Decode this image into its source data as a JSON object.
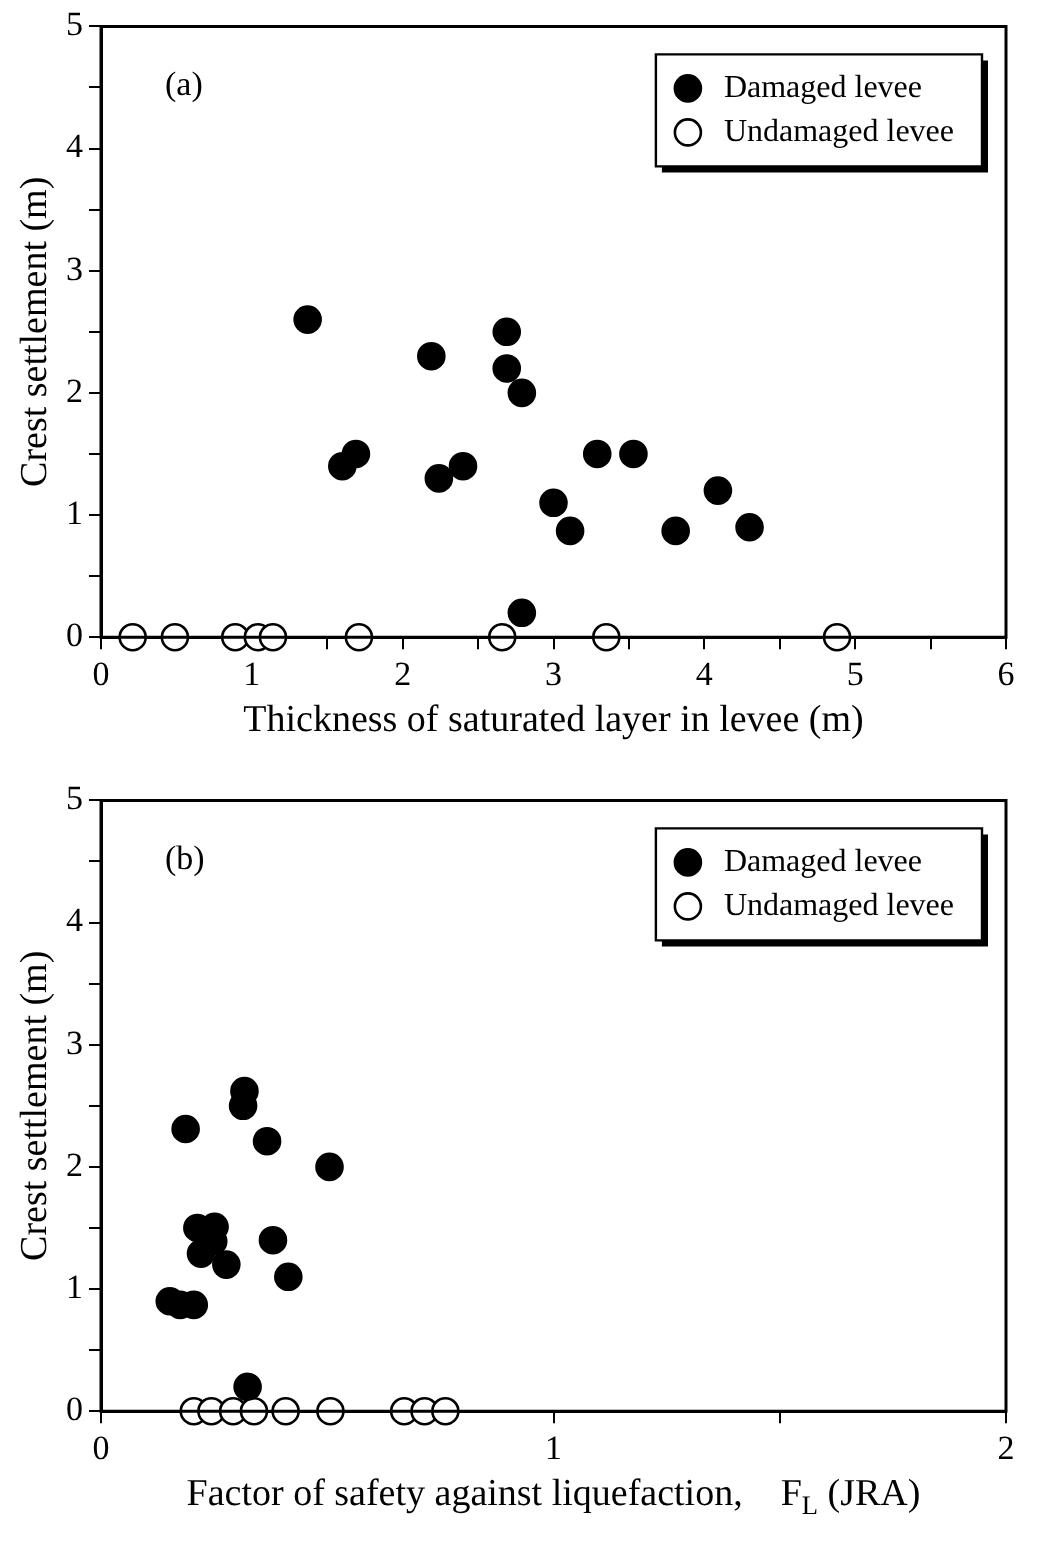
{
  "chart_data": [
    {
      "type": "scatter",
      "xlabel": "Thickness of saturated layer in levee (m)",
      "ylabel": "Crest settlement (m)",
      "annotations": [
        "(a)"
      ],
      "legend": "top right",
      "marker": "circle",
      "xlim": [
        0,
        6
      ],
      "ylim": [
        0,
        5
      ],
      "xticks": [
        0,
        {
          "value": 0.5,
          "label": null
        },
        1,
        {
          "value": 1.5,
          "label": null
        },
        2,
        {
          "value": 2.5,
          "label": null
        },
        3,
        {
          "value": 3.5,
          "label": null
        },
        4,
        {
          "value": 4.5,
          "label": null
        },
        5,
        {
          "value": 5.5,
          "label": null
        },
        6
      ],
      "yticks": [
        0,
        {
          "value": 0.5,
          "label": null
        },
        1,
        {
          "value": 1.5,
          "label": null
        },
        2,
        {
          "value": 2.5,
          "label": null
        },
        3,
        {
          "value": 3.5,
          "label": null
        },
        4,
        {
          "value": 4.5,
          "label": null
        },
        5
      ],
      "series": [
        {
          "name": "Damaged levee",
          "color": "#000000",
          "x": [
            1.37,
            1.6,
            1.69,
            2.19,
            2.24,
            2.4,
            2.69,
            2.69,
            2.79,
            2.79,
            3.0,
            3.11,
            3.29,
            3.53,
            3.81,
            4.09,
            4.3
          ],
          "values": [
            2.6,
            1.4,
            1.5,
            2.3,
            1.3,
            1.4,
            2.5,
            2.2,
            2.0,
            0.2,
            1.1,
            0.87,
            1.5,
            1.5,
            0.87,
            1.2,
            0.9
          ]
        },
        {
          "name": "Undamaged levee",
          "color": "#ffffff",
          "x": [
            0.21,
            0.49,
            0.89,
            1.04,
            1.14,
            1.71,
            2.66,
            3.35,
            4.88
          ],
          "values": [
            0,
            0,
            0,
            0,
            0,
            0,
            0,
            0,
            0
          ]
        }
      ]
    },
    {
      "type": "scatter",
      "xlabel": "Factor of safety against liquefaction,    F$_{L}$ (JRA)",
      "ylabel": "Crest settlement (m)",
      "annotations": [
        "(b)"
      ],
      "legend": "top right",
      "marker": "circle",
      "xlim": [
        0,
        2
      ],
      "ylim": [
        0,
        5
      ],
      "xticks": [
        0,
        {
          "value": 0.5,
          "label": null
        },
        1,
        {
          "value": 1.5,
          "label": null
        },
        2
      ],
      "yticks": [
        0,
        {
          "value": 0.5,
          "label": null
        },
        1,
        {
          "value": 1.5,
          "label": null
        },
        2,
        {
          "value": 2.5,
          "label": null
        },
        3,
        {
          "value": 3.5,
          "label": null
        },
        4,
        {
          "value": 4.5,
          "label": null
        },
        5
      ],
      "series": [
        {
          "name": "Damaged levee",
          "color": "#000000",
          "x": [
            0.187,
            0.317,
            0.314,
            0.367,
            0.505,
            0.213,
            0.251,
            0.248,
            0.221,
            0.277,
            0.38,
            0.414,
            0.152,
            0.175,
            0.205,
            0.324
          ],
          "values": [
            2.31,
            2.62,
            2.5,
            2.21,
            2.0,
            1.5,
            1.51,
            1.39,
            1.29,
            1.2,
            1.4,
            1.1,
            0.9,
            0.87,
            0.87,
            0.2
          ]
        },
        {
          "name": "Undamaged levee",
          "color": "#ffffff",
          "x": [
            0.205,
            0.244,
            0.292,
            0.338,
            0.408,
            0.507,
            0.67,
            0.715,
            0.761
          ],
          "values": [
            0,
            0,
            0,
            0,
            0,
            0,
            0,
            0,
            0
          ]
        }
      ]
    }
  ]
}
